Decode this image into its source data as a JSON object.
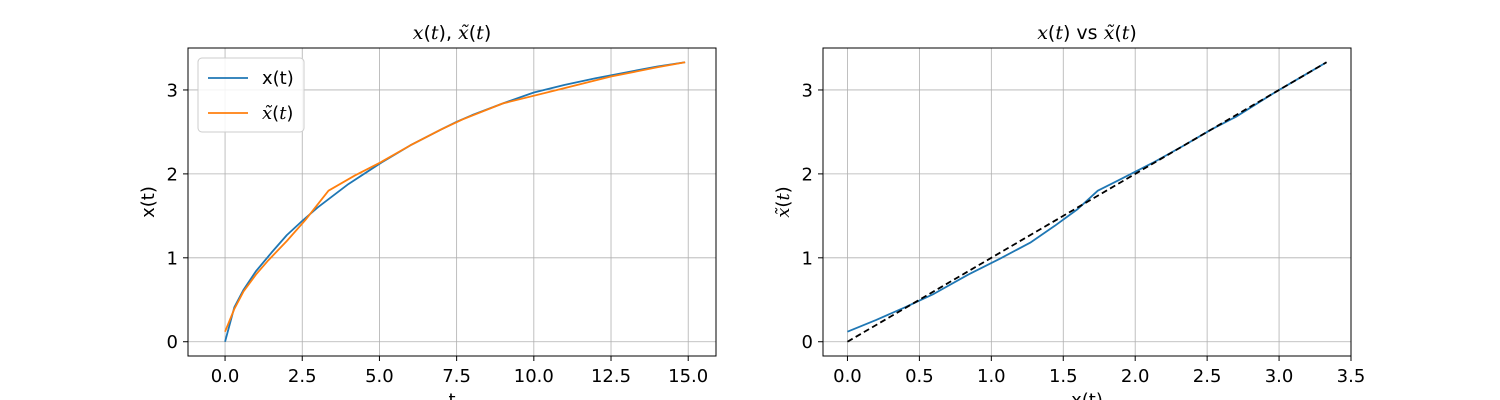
{
  "chart_data": [
    {
      "type": "line",
      "title_parts": [
        {
          "t": "x",
          "it": true
        },
        {
          "t": "(",
          "it": false
        },
        {
          "t": "t",
          "it": true
        },
        {
          "t": "), ",
          "it": false
        },
        {
          "t": "x̃",
          "it": true
        },
        {
          "t": "(",
          "it": false
        },
        {
          "t": "t",
          "it": true
        },
        {
          "t": ")",
          "it": false
        }
      ],
      "xlabel": "t",
      "ylabel": "x(t)",
      "xlim": [
        -1.2,
        15.9
      ],
      "ylim": [
        -0.17,
        3.5
      ],
      "xticks": [
        0.0,
        2.5,
        5.0,
        7.5,
        10.0,
        12.5,
        15.0
      ],
      "xtick_labels": [
        "0.0",
        "2.5",
        "5.0",
        "7.5",
        "10.0",
        "12.5",
        "15.0"
      ],
      "yticks": [
        0,
        1,
        2,
        3
      ],
      "ytick_labels": [
        "0",
        "1",
        "2",
        "3"
      ],
      "grid": true,
      "legend_position": "upper-left",
      "series": [
        {
          "name": "x(t)",
          "color": "#1f77b4",
          "x": [
            0,
            0.3,
            0.6,
            1.0,
            1.5,
            2.0,
            2.5,
            3.0,
            3.5,
            4.0,
            5.0,
            6.0,
            7.0,
            7.5,
            8.0,
            9.0,
            10.0,
            11.0,
            12.0,
            13.0,
            14.0,
            14.9
          ],
          "y": [
            0,
            0.41,
            0.62,
            0.84,
            1.06,
            1.27,
            1.44,
            1.6,
            1.74,
            1.88,
            2.12,
            2.34,
            2.53,
            2.62,
            2.7,
            2.84,
            2.97,
            3.06,
            3.14,
            3.21,
            3.28,
            3.33
          ]
        },
        {
          "name_parts": [
            {
              "t": "x̃",
              "it": true
            },
            {
              "t": "(",
              "it": false
            },
            {
              "t": "t",
              "it": true
            },
            {
              "t": ")",
              "it": false
            }
          ],
          "color": "#ff7f0e",
          "x": [
            0,
            0.3,
            0.6,
            1.0,
            1.4,
            2.0,
            2.6,
            3.35,
            4.2,
            5.0,
            6.0,
            7.0,
            7.7,
            9.0,
            10.75,
            12.5,
            14.0,
            14.9
          ],
          "y": [
            0.12,
            0.39,
            0.6,
            0.8,
            0.97,
            1.2,
            1.45,
            1.8,
            1.98,
            2.13,
            2.34,
            2.53,
            2.65,
            2.84,
            3.0,
            3.16,
            3.27,
            3.33
          ]
        }
      ]
    },
    {
      "type": "line",
      "title_parts": [
        {
          "t": "x",
          "it": true
        },
        {
          "t": "(",
          "it": false
        },
        {
          "t": "t",
          "it": true
        },
        {
          "t": ") vs ",
          "it": false
        },
        {
          "t": "x̃",
          "it": true
        },
        {
          "t": "(",
          "it": false
        },
        {
          "t": "t",
          "it": true
        },
        {
          "t": ")",
          "it": false
        }
      ],
      "xlabel": "x(t)",
      "ylabel_parts": [
        {
          "t": "x̃",
          "it": true
        },
        {
          "t": "(",
          "it": false
        },
        {
          "t": "t",
          "it": true
        },
        {
          "t": ")",
          "it": false
        }
      ],
      "xlim": [
        -0.17,
        3.5
      ],
      "ylim": [
        -0.17,
        3.5
      ],
      "xticks": [
        0.0,
        0.5,
        1.0,
        1.5,
        2.0,
        2.5,
        3.0,
        3.5
      ],
      "xtick_labels": [
        "0.0",
        "0.5",
        "1.0",
        "1.5",
        "2.0",
        "2.5",
        "3.0",
        "3.5"
      ],
      "yticks": [
        0,
        1,
        2,
        3
      ],
      "ytick_labels": [
        "0",
        "1",
        "2",
        "3"
      ],
      "grid": true,
      "series": [
        {
          "color": "#1f77b4",
          "style": "solid",
          "x": [
            0,
            0.2,
            0.4,
            0.6,
            0.84,
            1.06,
            1.27,
            1.44,
            1.6,
            1.74,
            1.88,
            2.12,
            2.34,
            2.53,
            2.7,
            2.97,
            3.14,
            3.33
          ],
          "y": [
            0.12,
            0.26,
            0.41,
            0.57,
            0.8,
            0.99,
            1.18,
            1.38,
            1.58,
            1.8,
            1.92,
            2.13,
            2.34,
            2.53,
            2.68,
            2.97,
            3.14,
            3.33
          ]
        },
        {
          "color": "#000000",
          "style": "dashed",
          "x": [
            0,
            3.33
          ],
          "y": [
            0,
            3.33
          ]
        }
      ]
    }
  ]
}
